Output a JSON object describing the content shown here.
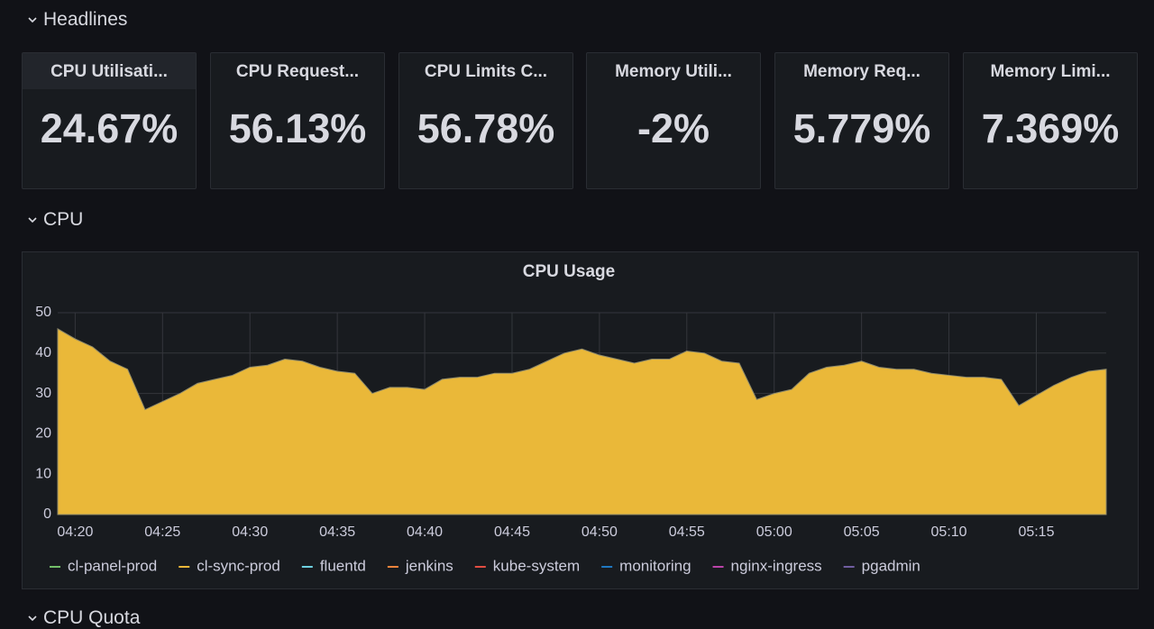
{
  "sections": [
    "Headlines",
    "CPU",
    "CPU Quota"
  ],
  "stats": [
    {
      "title": "CPU Utilisati...",
      "value": "24.67%"
    },
    {
      "title": "CPU Request...",
      "value": "56.13%"
    },
    {
      "title": "CPU Limits C...",
      "value": "56.78%"
    },
    {
      "title": "Memory Utili...",
      "value": "-2%"
    },
    {
      "title": "Memory Req...",
      "value": "5.779%"
    },
    {
      "title": "Memory Limi...",
      "value": "7.369%"
    }
  ],
  "chart_data": {
    "type": "area",
    "title": "CPU Usage",
    "x": [
      "04:19",
      "04:20",
      "04:21",
      "04:22",
      "04:23",
      "04:24",
      "04:25",
      "04:26",
      "04:27",
      "04:28",
      "04:29",
      "04:30",
      "04:31",
      "04:32",
      "04:33",
      "04:34",
      "04:35",
      "04:36",
      "04:37",
      "04:38",
      "04:39",
      "04:40",
      "04:41",
      "04:42",
      "04:43",
      "04:44",
      "04:45",
      "04:46",
      "04:47",
      "04:48",
      "04:49",
      "04:50",
      "04:51",
      "04:52",
      "04:53",
      "04:54",
      "04:55",
      "04:56",
      "04:57",
      "04:58",
      "04:59",
      "05:00",
      "05:01",
      "05:02",
      "05:03",
      "05:04",
      "05:05",
      "05:06",
      "05:07",
      "05:08",
      "05:09",
      "05:10",
      "05:11",
      "05:12",
      "05:13",
      "05:14",
      "05:15",
      "05:16",
      "05:17",
      "05:18",
      "05:19"
    ],
    "series": [
      {
        "name": "cl-panel-prod",
        "color": "#73bf69"
      },
      {
        "name": "cl-sync-prod",
        "color": "#eab839",
        "values": [
          46,
          43.5,
          41.5,
          38,
          36,
          26,
          28,
          30,
          32.5,
          33.5,
          34.5,
          36.5,
          37,
          38.5,
          38,
          36.5,
          35.5,
          35,
          30,
          31.5,
          31.5,
          31,
          33.5,
          34,
          34,
          35,
          35,
          36,
          38,
          40,
          41,
          39.5,
          38.5,
          37.5,
          38.5,
          38.5,
          40.5,
          40,
          38,
          37.5,
          28.5,
          30,
          31,
          35,
          36.5,
          37,
          38,
          36.5,
          36,
          36,
          35,
          34.5,
          34,
          34,
          33.5,
          27,
          29.5,
          32,
          34,
          35.5,
          36
        ]
      },
      {
        "name": "fluentd",
        "color": "#6ed0e0"
      },
      {
        "name": "jenkins",
        "color": "#ef843c"
      },
      {
        "name": "kube-system",
        "color": "#e24d42"
      },
      {
        "name": "monitoring",
        "color": "#1f78c1"
      },
      {
        "name": "nginx-ingress",
        "color": "#ba43a9"
      },
      {
        "name": "pgadmin",
        "color": "#705da0"
      }
    ],
    "xlim": [
      "04:19",
      "05:19"
    ],
    "xticks": [
      "04:20",
      "04:25",
      "04:30",
      "04:35",
      "04:40",
      "04:45",
      "04:50",
      "04:55",
      "05:00",
      "05:05",
      "05:10",
      "05:15"
    ],
    "ylim": [
      0,
      50
    ],
    "yticks": [
      0,
      10,
      20,
      30,
      40,
      50
    ],
    "grid": true
  }
}
